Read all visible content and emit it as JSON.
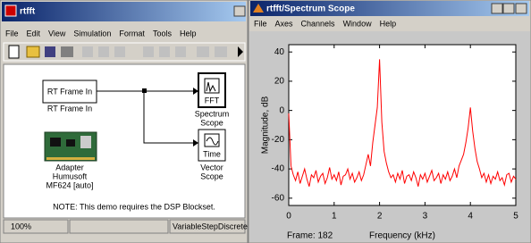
{
  "model_window": {
    "title": "rtfft",
    "menu": [
      "File",
      "Edit",
      "View",
      "Simulation",
      "Format",
      "Tools",
      "Help"
    ],
    "blocks": [
      {
        "text": "RT Frame In",
        "caption": [
          "RT Frame In"
        ]
      },
      {
        "text": "FFT",
        "caption": [
          "Spectrum",
          "Scope"
        ]
      },
      {
        "text": "Time",
        "caption": [
          "Vector",
          "Scope"
        ]
      },
      {
        "caption": [
          "Adapter",
          "Humusoft",
          "MF624 [auto]"
        ]
      }
    ],
    "note": "NOTE: This demo requires the DSP Blockset.",
    "status": [
      "100%",
      "VariableStepDiscrete"
    ]
  },
  "scope_window": {
    "title": "rtfft/Spectrum Scope",
    "menu": [
      "File",
      "Axes",
      "Channels",
      "Window",
      "Help"
    ],
    "frame_label": "Frame: 182"
  },
  "chart_data": {
    "type": "line",
    "xlabel": "Frequency (kHz)",
    "ylabel": "Magnitude, dB",
    "xlim": [
      0,
      5
    ],
    "ylim": [
      -65,
      45
    ],
    "xticks": [
      0,
      1,
      2,
      3,
      4,
      5
    ],
    "yticks": [
      -60,
      -40,
      -20,
      0,
      20,
      40
    ],
    "x": [
      0,
      0.05,
      0.1,
      0.15,
      0.2,
      0.25,
      0.3,
      0.35,
      0.4,
      0.45,
      0.5,
      0.55,
      0.6,
      0.65,
      0.7,
      0.75,
      0.8,
      0.85,
      0.9,
      0.95,
      1,
      1.05,
      1.1,
      1.15,
      1.2,
      1.25,
      1.3,
      1.35,
      1.4,
      1.45,
      1.5,
      1.55,
      1.6,
      1.65,
      1.7,
      1.75,
      1.8,
      1.85,
      1.9,
      1.95,
      2,
      2.05,
      2.1,
      2.15,
      2.2,
      2.25,
      2.3,
      2.35,
      2.4,
      2.45,
      2.5,
      2.55,
      2.6,
      2.65,
      2.7,
      2.75,
      2.8,
      2.85,
      2.9,
      2.95,
      3,
      3.05,
      3.1,
      3.15,
      3.2,
      3.25,
      3.3,
      3.35,
      3.4,
      3.45,
      3.5,
      3.55,
      3.6,
      3.65,
      3.7,
      3.75,
      3.8,
      3.85,
      3.9,
      3.95,
      4,
      4.05,
      4.1,
      4.15,
      4.2,
      4.25,
      4.3,
      4.35,
      4.4,
      4.45,
      4.5,
      4.55,
      4.6,
      4.65,
      4.7,
      4.75,
      4.8,
      4.85,
      4.9,
      4.95,
      5
    ],
    "series": [
      {
        "color": "#ff0000",
        "values": [
          -2,
          -38,
          -44,
          -48,
          -42,
          -50,
          -45,
          -40,
          -47,
          -52,
          -44,
          -46,
          -41,
          -49,
          -45,
          -43,
          -50,
          -46,
          -39,
          -47,
          -44,
          -48,
          -42,
          -51,
          -45,
          -44,
          -40,
          -47,
          -43,
          -49,
          -46,
          -42,
          -48,
          -44,
          -37,
          -30,
          -38,
          -22,
          -10,
          2,
          35,
          -8,
          -28,
          -36,
          -42,
          -46,
          -44,
          -49,
          -43,
          -47,
          -41,
          -50,
          -45,
          -44,
          -48,
          -42,
          -46,
          -52,
          -44,
          -47,
          -43,
          -49,
          -45,
          -41,
          -48,
          -46,
          -43,
          -50,
          -44,
          -47,
          -42,
          -48,
          -45,
          -40,
          -46,
          -38,
          -34,
          -30,
          -22,
          -12,
          2,
          -14,
          -26,
          -35,
          -40,
          -46,
          -43,
          -49,
          -44,
          -50,
          -45,
          -47,
          -42,
          -48,
          -46,
          -51,
          -44,
          -43,
          -49,
          -45,
          -47
        ]
      }
    ]
  }
}
